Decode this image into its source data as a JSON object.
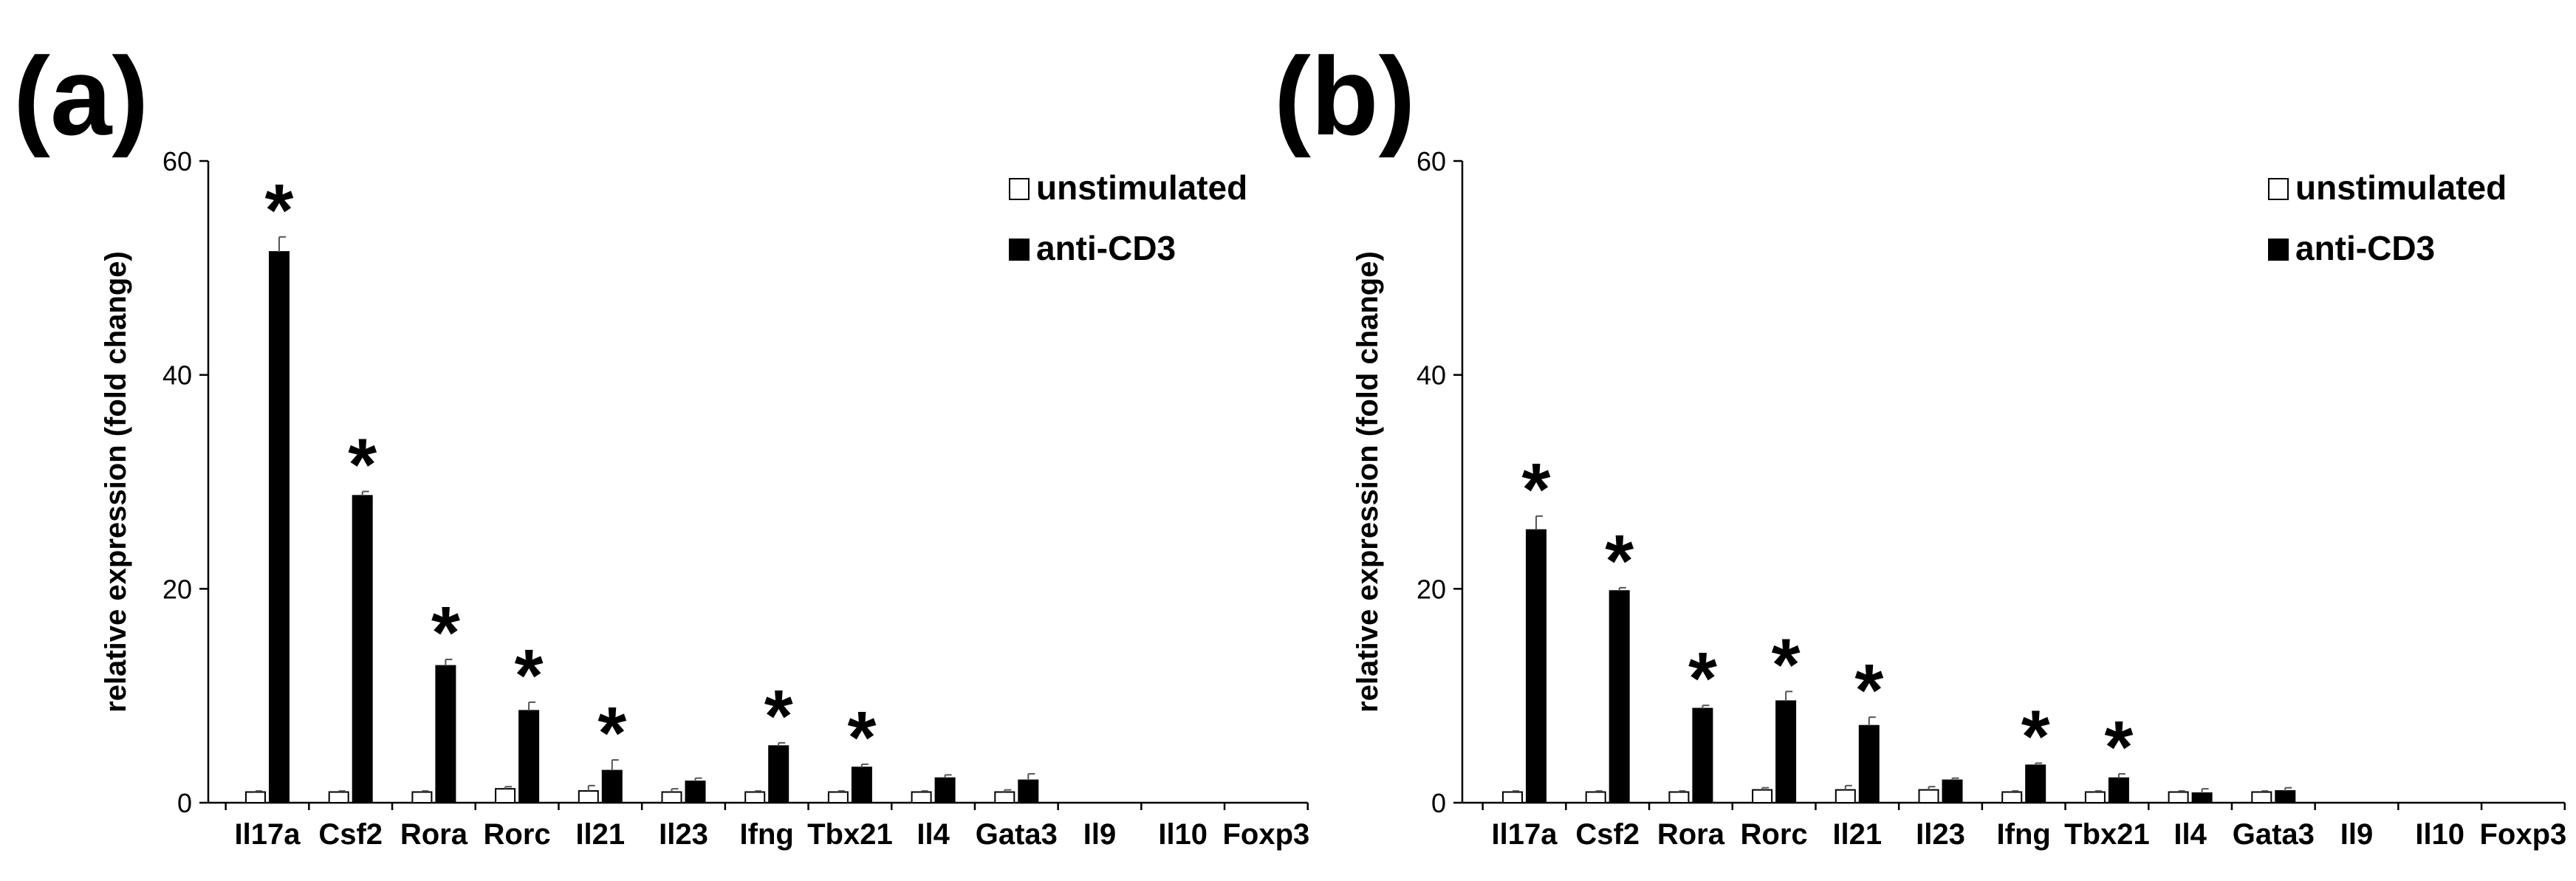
{
  "chart_data": [
    {
      "type": "bar",
      "panel_label": "(a)",
      "ylabel": "relative expression (fold change)",
      "ylim": [
        0,
        60
      ],
      "yticks": [
        "0",
        "20",
        "40",
        "60"
      ],
      "categories": [
        "Il17a",
        "Csf2",
        "Rora",
        "Rorc",
        "Il21",
        "Il23",
        "Ifng",
        "Tbx21",
        "Il4",
        "Gata3",
        "Il9",
        "Il10",
        "Foxp3"
      ],
      "series": [
        {
          "name": "unstimulated",
          "color": "#ffffff",
          "values": [
            1,
            1,
            1,
            1.3,
            1.1,
            1,
            1,
            1,
            1,
            1,
            null,
            null,
            null
          ],
          "errors": [
            0.1,
            0.1,
            0.1,
            0.2,
            0.5,
            0.3,
            0.1,
            0.1,
            0.1,
            0.2,
            null,
            null,
            null
          ]
        },
        {
          "name": "anti-CD3",
          "color": "#000000",
          "values": [
            51.5,
            28.7,
            12.8,
            8.6,
            3.0,
            2.0,
            5.3,
            3.3,
            2.3,
            2.1,
            null,
            null,
            null
          ],
          "errors": [
            1.4,
            0.4,
            0.6,
            0.8,
            1.0,
            0.3,
            0.3,
            0.3,
            0.3,
            0.6,
            null,
            null,
            null
          ]
        }
      ],
      "significance": [
        true,
        true,
        true,
        true,
        true,
        false,
        true,
        true,
        false,
        false,
        false,
        false,
        false
      ],
      "significance_symbol": "*",
      "legend": "top-right"
    },
    {
      "type": "bar",
      "panel_label": "(b)",
      "ylabel": "relative expression (fold change)",
      "ylim": [
        0,
        60
      ],
      "yticks": [
        "0",
        "20",
        "40",
        "60"
      ],
      "categories": [
        "Il17a",
        "Csf2",
        "Rora",
        "Rorc",
        "Il21",
        "Il23",
        "Ifng",
        "Tbx21",
        "Il4",
        "Gata3",
        "Il9",
        "Il10",
        "Foxp3"
      ],
      "series": [
        {
          "name": "unstimulated",
          "color": "#ffffff",
          "values": [
            1,
            1,
            1,
            1.2,
            1.2,
            1.2,
            1,
            1,
            1,
            1,
            null,
            null,
            null
          ],
          "errors": [
            0.1,
            0.1,
            0.1,
            0.2,
            0.4,
            0.3,
            0.1,
            0.1,
            0.1,
            0.1,
            null,
            null,
            null
          ]
        },
        {
          "name": "anti-CD3",
          "color": "#000000",
          "values": [
            25.5,
            19.8,
            8.8,
            9.5,
            7.2,
            2.1,
            3.5,
            2.3,
            0.9,
            1.1,
            null,
            null,
            null
          ],
          "errors": [
            1.3,
            0.3,
            0.3,
            0.9,
            0.8,
            0.2,
            0.2,
            0.4,
            0.4,
            0.3,
            null,
            null,
            null
          ]
        }
      ],
      "significance": [
        true,
        true,
        true,
        true,
        true,
        false,
        true,
        true,
        false,
        false,
        false,
        false,
        false
      ],
      "significance_symbol": "*",
      "legend": "top-right"
    }
  ]
}
